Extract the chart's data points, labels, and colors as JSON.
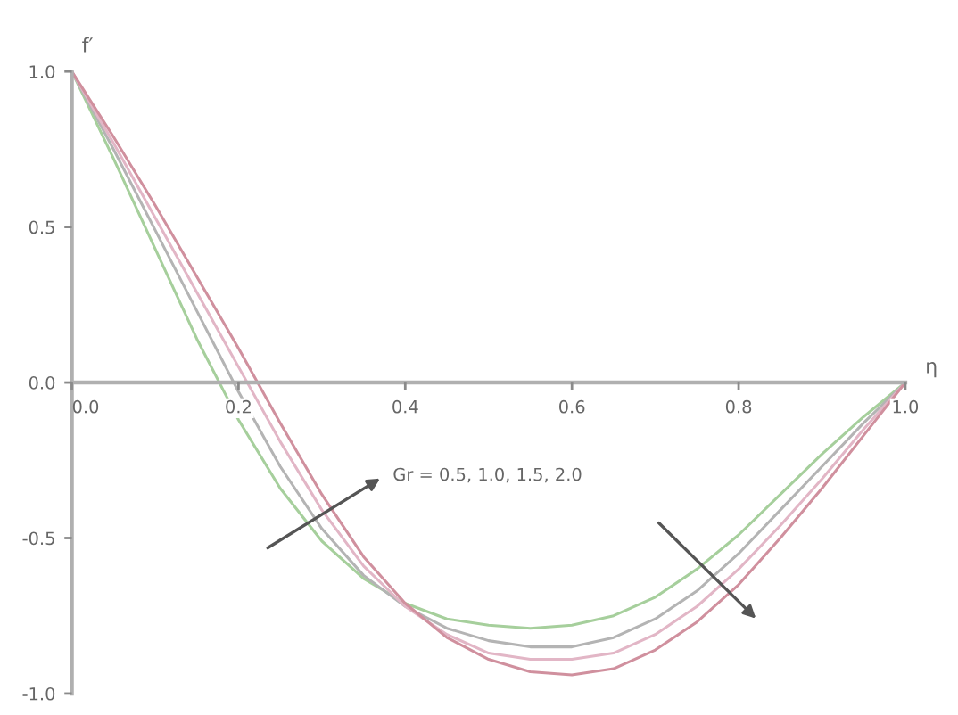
{
  "chart_data": {
    "type": "line",
    "xlabel": "η",
    "ylabel": "f′",
    "x": [
      0,
      0.05,
      0.1,
      0.15,
      0.2,
      0.25,
      0.3,
      0.35,
      0.4,
      0.45,
      0.5,
      0.55,
      0.6,
      0.65,
      0.7,
      0.75,
      0.8,
      0.85,
      0.9,
      0.95,
      1.0
    ],
    "series": [
      {
        "color": "#a6cf9c",
        "values": [
          1.0,
          0.72,
          0.43,
          0.14,
          -0.12,
          -0.34,
          -0.51,
          -0.63,
          -0.71,
          -0.76,
          -0.78,
          -0.79,
          -0.78,
          -0.75,
          -0.69,
          -0.6,
          -0.49,
          -0.36,
          -0.23,
          -0.11,
          0.0
        ]
      },
      {
        "color": "#b4b4b4",
        "values": [
          1.0,
          0.75,
          0.49,
          0.23,
          -0.03,
          -0.27,
          -0.47,
          -0.62,
          -0.72,
          -0.79,
          -0.83,
          -0.85,
          -0.85,
          -0.82,
          -0.76,
          -0.67,
          -0.55,
          -0.41,
          -0.27,
          -0.13,
          0.0
        ]
      },
      {
        "color": "#e2b6c6",
        "values": [
          1.0,
          0.77,
          0.53,
          0.29,
          0.05,
          -0.19,
          -0.41,
          -0.59,
          -0.72,
          -0.81,
          -0.87,
          -0.89,
          -0.89,
          -0.87,
          -0.81,
          -0.72,
          -0.6,
          -0.46,
          -0.31,
          -0.15,
          0.0
        ]
      },
      {
        "color": "#d0909e",
        "values": [
          1.0,
          0.79,
          0.57,
          0.34,
          0.11,
          -0.13,
          -0.36,
          -0.56,
          -0.71,
          -0.82,
          -0.89,
          -0.93,
          -0.94,
          -0.92,
          -0.86,
          -0.77,
          -0.65,
          -0.5,
          -0.34,
          -0.17,
          0.0
        ]
      }
    ],
    "xlim": [
      0,
      1.0
    ],
    "xticks": [
      {
        "value": 0,
        "label": "0.0"
      },
      0.2,
      0.4,
      0.6,
      0.8,
      {
        "value": 1.0,
        "label": "1.0"
      }
    ],
    "ylim": [
      -1.0,
      1.0
    ],
    "yticks": [
      {
        "value": -1.0,
        "label": "-1.0"
      },
      -0.5,
      {
        "value": 0,
        "label": "0.0"
      },
      0.5,
      {
        "value": 1.0,
        "label": "1.0"
      }
    ],
    "grid": false,
    "marker": "none",
    "line_style": "solid",
    "annotations": [
      "Gr = 0.5, 1.0, 1.5, 2.0"
    ]
  }
}
